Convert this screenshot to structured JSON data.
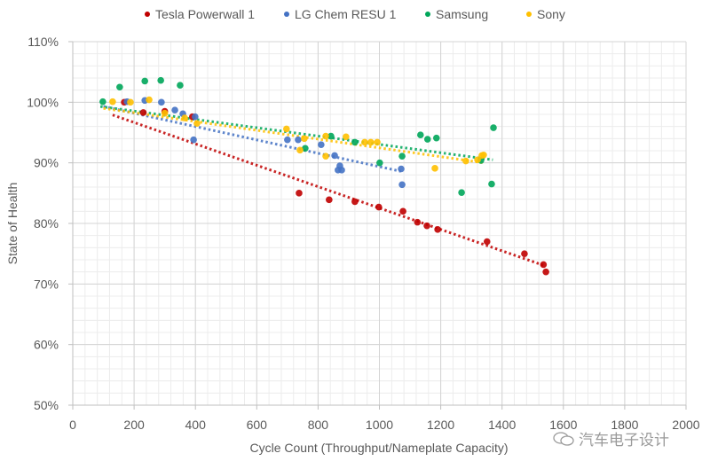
{
  "chart_data": {
    "type": "scatter",
    "title": "",
    "xlabel": "Cycle Count (Throughput/Nameplate  Capacity)",
    "ylabel": "State of Health",
    "xlim": [
      0,
      2000
    ],
    "ylim": [
      50,
      110
    ],
    "x_ticks": [
      0,
      200,
      400,
      600,
      800,
      1000,
      1200,
      1400,
      1600,
      1800,
      2000
    ],
    "x_tick_labels": [
      "0",
      "200",
      "400",
      "600",
      "800",
      "1000",
      "1200",
      "1400",
      "1600",
      "1800",
      "2000"
    ],
    "y_ticks": [
      50,
      60,
      70,
      80,
      90,
      100,
      110
    ],
    "y_tick_labels": [
      "50%",
      "60%",
      "70%",
      "80%",
      "90%",
      "100%",
      "110%"
    ],
    "grid": "major and minor",
    "legend_position": "top",
    "series": [
      {
        "name": "Tesla Powerwall 1",
        "color": "#c00000",
        "points": [
          [
            168,
            100.0
          ],
          [
            230,
            98.3
          ],
          [
            300,
            98.5
          ],
          [
            390,
            97.6
          ],
          [
            738,
            85.0
          ],
          [
            836,
            83.9
          ],
          [
            920,
            83.6
          ],
          [
            998,
            82.7
          ],
          [
            1077,
            82.0
          ],
          [
            1124,
            80.2
          ],
          [
            1155,
            79.6
          ],
          [
            1190,
            79.0
          ],
          [
            1351,
            77.0
          ],
          [
            1473,
            75.0
          ],
          [
            1535,
            73.2
          ],
          [
            1543,
            72.0
          ]
        ],
        "trendline": [
          [
            130,
            97.9
          ],
          [
            1540,
            73.0
          ]
        ]
      },
      {
        "name": "LG Chem RESU 1",
        "color": "#4472c4",
        "points": [
          [
            177,
            100.1
          ],
          [
            235,
            100.3
          ],
          [
            289,
            100.0
          ],
          [
            333,
            98.7
          ],
          [
            359,
            98.1
          ],
          [
            399,
            97.6
          ],
          [
            394,
            93.8
          ],
          [
            700,
            93.8
          ],
          [
            735,
            93.8
          ],
          [
            810,
            93.0
          ],
          [
            854,
            91.2
          ],
          [
            871,
            89.5
          ],
          [
            877,
            88.8
          ],
          [
            865,
            88.8
          ],
          [
            1071,
            89.0
          ],
          [
            1074,
            86.4
          ]
        ],
        "trendline": [
          [
            100,
            99.3
          ],
          [
            1070,
            88.6
          ]
        ]
      },
      {
        "name": "Samsung",
        "color": "#00a65a",
        "points": [
          [
            98,
            100.1
          ],
          [
            153,
            102.5
          ],
          [
            235,
            103.5
          ],
          [
            287,
            103.6
          ],
          [
            350,
            102.8
          ],
          [
            758,
            92.4
          ],
          [
            842,
            94.4
          ],
          [
            920,
            93.4
          ],
          [
            1001,
            90.0
          ],
          [
            1074,
            91.1
          ],
          [
            1134,
            94.6
          ],
          [
            1157,
            93.9
          ],
          [
            1186,
            94.1
          ],
          [
            1268,
            85.1
          ],
          [
            1331,
            90.4
          ],
          [
            1372,
            95.8
          ],
          [
            1366,
            86.5
          ]
        ],
        "trendline": [
          [
            90,
            99.3
          ],
          [
            1370,
            90.5
          ]
        ]
      },
      {
        "name": "Sony",
        "color": "#ffc000",
        "points": [
          [
            130,
            100.1
          ],
          [
            188,
            100.0
          ],
          [
            249,
            100.4
          ],
          [
            300,
            98.2
          ],
          [
            365,
            97.4
          ],
          [
            405,
            96.5
          ],
          [
            697,
            95.6
          ],
          [
            755,
            94.0
          ],
          [
            741,
            92.1
          ],
          [
            825,
            94.4
          ],
          [
            825,
            91.1
          ],
          [
            891,
            94.3
          ],
          [
            952,
            93.4
          ],
          [
            972,
            93.4
          ],
          [
            993,
            93.4
          ],
          [
            1181,
            89.1
          ],
          [
            1282,
            90.3
          ],
          [
            1320,
            90.5
          ],
          [
            1334,
            91.2
          ],
          [
            1340,
            91.3
          ]
        ],
        "trendline": [
          [
            100,
            99.0
          ],
          [
            1340,
            90.0
          ]
        ]
      }
    ]
  },
  "watermark": {
    "text": "汽车电子设计"
  }
}
